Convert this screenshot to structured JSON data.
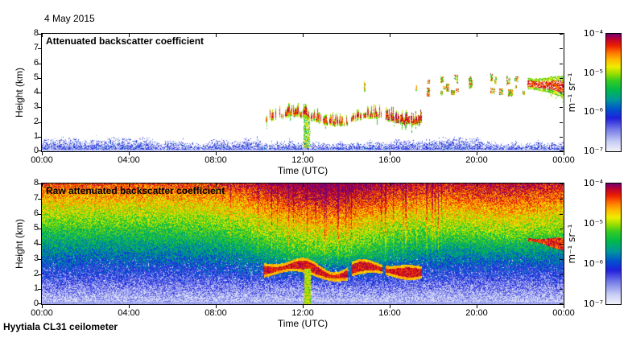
{
  "page": {
    "date_label": "4 May 2015",
    "footer": "Hyytiala CL31 ceilometer",
    "background": "#ffffff"
  },
  "colorbar": {
    "tick_labels": [
      "10⁻⁴",
      "10⁻⁵",
      "10⁻⁶",
      "10⁻⁷"
    ],
    "unit": "m⁻¹ sr⁻¹",
    "scale": "log",
    "range": [
      1e-07,
      0.0001
    ],
    "position": "right"
  },
  "colormap": {
    "description": "white-blue-green-yellow-red-maroon log backscatter colormap",
    "stops": [
      [
        0.0,
        "#f0f0fa"
      ],
      [
        0.08,
        "#c6ccf4"
      ],
      [
        0.18,
        "#787ee8"
      ],
      [
        0.28,
        "#2020dd"
      ],
      [
        0.36,
        "#0055cc"
      ],
      [
        0.44,
        "#00999a"
      ],
      [
        0.52,
        "#00b84d"
      ],
      [
        0.6,
        "#33cc22"
      ],
      [
        0.66,
        "#99dd00"
      ],
      [
        0.72,
        "#eeee00"
      ],
      [
        0.78,
        "#ffbb00"
      ],
      [
        0.84,
        "#ff7700"
      ],
      [
        0.9,
        "#ee2200"
      ],
      [
        0.96,
        "#bb0033"
      ],
      [
        1.0,
        "#77006f"
      ]
    ]
  },
  "chart_data": [
    {
      "type": "heatmap",
      "title": "Attenuated backscatter coefficient",
      "xlabel": "Time (UTC)",
      "ylabel": "Height (km)",
      "x_tick_labels": [
        "00:00",
        "04:00",
        "08:00",
        "12:00",
        "16:00",
        "20:00",
        "00:00"
      ],
      "x_range_hours": [
        0,
        24
      ],
      "y_tick_labels": [
        "0",
        "1",
        "2",
        "3",
        "4",
        "5",
        "6",
        "7",
        "8"
      ],
      "ylim_km": [
        0,
        8
      ],
      "value_range": [
        1e-07,
        0.0001
      ],
      "grid": "off",
      "background": "white (below detection)",
      "features": {
        "boundary_layer": {
          "hours": [
            0,
            24
          ],
          "top_km_range": [
            0.5,
            0.95
          ],
          "description": "blue speckled aerosol layer near surface, ~1e-7 to 5e-6"
        },
        "cloud_segments": [
          {
            "hours": [
              10.2,
              11.35
            ],
            "base_km": 2.0,
            "top_km": 2.8,
            "density": 0.35
          },
          {
            "hours": [
              11.35,
              14.05
            ],
            "base_km": 2.0,
            "top_km": 3.2,
            "density": 0.8
          },
          {
            "hours": [
              14.25,
              15.65
            ],
            "base_km": 2.2,
            "top_km": 3.1,
            "density": 0.75
          },
          {
            "hours": [
              15.8,
              17.45
            ],
            "base_km": 2.2,
            "top_km": 3.2,
            "density": 0.9,
            "maroon": true
          }
        ],
        "fallstreak": {
          "hours": [
            12.05,
            12.3
          ],
          "km": [
            0.25,
            2.35
          ],
          "description": "virga streak reaching near surface at ~12:00"
        },
        "scattered_clouds": {
          "hours": [
            17.6,
            22.3
          ],
          "km": [
            3.9,
            5.2
          ],
          "count": 26,
          "description": "broken mid-level cloud specks"
        },
        "evening_cloud": {
          "hours": [
            22.35,
            24
          ],
          "km": [
            3.4,
            5.15
          ],
          "description": "thicker cloud mass, base descending toward midnight"
        }
      }
    },
    {
      "type": "heatmap",
      "title": "Raw attenuated backscatter coefficient",
      "xlabel": "Time (UTC)",
      "ylabel": "Height (km)",
      "x_tick_labels": [
        "00:00",
        "04:00",
        "08:00",
        "12:00",
        "16:00",
        "20:00",
        "00:00"
      ],
      "x_range_hours": [
        0,
        24
      ],
      "y_tick_labels": [
        "0",
        "1",
        "2",
        "3",
        "4",
        "5",
        "6",
        "7",
        "8"
      ],
      "ylim_km": [
        0,
        8
      ],
      "value_range": [
        1e-07,
        0.0001
      ],
      "grid": "off",
      "features": {
        "noise_floor": {
          "t0_km0": 0.07,
          "t_per_km": 0.101,
          "description": "range-dependent noise: blue near surface grading to red at 8 km"
        },
        "day_boost": {
          "peak_hour": 13,
          "sigma_hours": 3.6,
          "amount": 0.16,
          "above_km": 1.2,
          "description": "solar background noise strongest ~09:00-17:00"
        },
        "evening_boost": {
          "peak_hour": 21.5,
          "sigma_hours": 3.5,
          "amount": 0.09,
          "above_km": 2.5
        },
        "white_speckle": {
          "below_km": 3.2,
          "max_prob": 0.17
        },
        "surface_band_km": 0.2,
        "vertical_streaks": {
          "hours": [
            8.5,
            18.5
          ],
          "prob": 0.09
        },
        "clouds": "same cloud layers, fallstreak and evening cloud as panel 1, saturated dark red/maroon"
      }
    }
  ]
}
